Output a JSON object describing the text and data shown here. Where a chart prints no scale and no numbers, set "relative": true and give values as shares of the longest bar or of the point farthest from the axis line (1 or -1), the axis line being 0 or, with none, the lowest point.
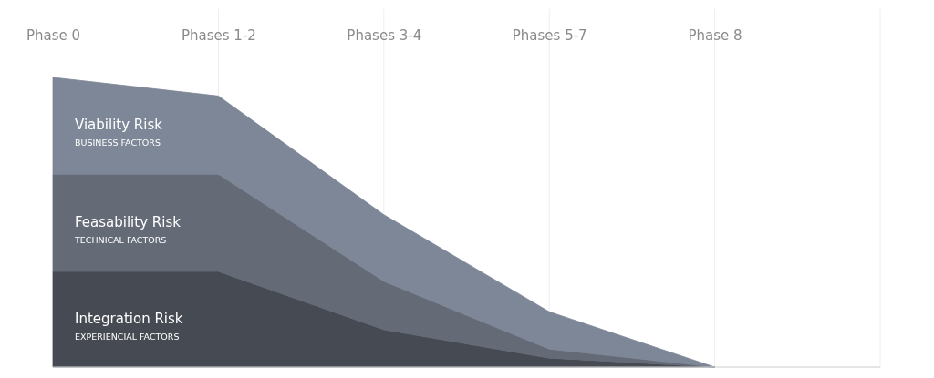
{
  "chart_data": {
    "type": "area",
    "stacked": true,
    "relative": true,
    "grid": "x",
    "categories": [
      "Phase 0",
      "Phases 1-2",
      "Phases 3-4",
      "Phases 5-7",
      "Phase 8"
    ],
    "series": [
      {
        "name": "Integration Risk",
        "color": "#464a53",
        "values": [
          0.33,
          0.33,
          0.129,
          0.031,
          0
        ]
      },
      {
        "name": "Feasability Risk",
        "color": "#646a76",
        "values": [
          0.336,
          0.336,
          0.167,
          0.031,
          0
        ]
      },
      {
        "name": "Viability Risk",
        "color": "#7d8797",
        "values": [
          0.334,
          0.27,
          0.23,
          0.129,
          0
        ]
      }
    ],
    "annotations": [
      "EXPERIENCIAL FACTORS",
      "TECHNICAL FACTORS",
      "BUSINESS FACTORS"
    ]
  }
}
